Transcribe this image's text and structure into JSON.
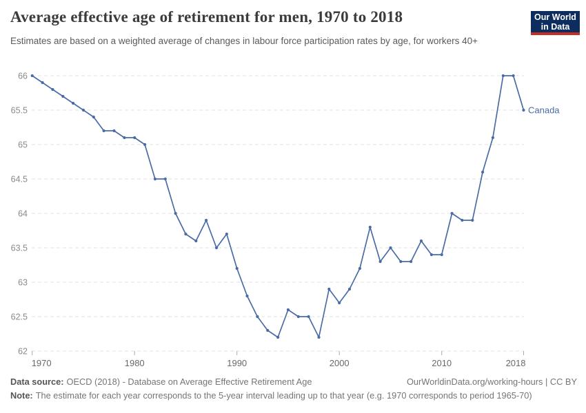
{
  "header": {
    "title": "Average effective age of retirement for men, 1970 to 2018",
    "subtitle": "Estimates are based on a weighted average of changes in labour force participation rates by age, for workers 40+",
    "logo_line1": "Our World",
    "logo_line2": "in Data"
  },
  "footer": {
    "source_label": "Data source:",
    "source_text": "OECD (2018) - Database on Average Effective Retirement Age",
    "citation": "OurWorldinData.org/working-hours | CC BY",
    "note_label": "Note:",
    "note_text": "The estimate for each year corresponds to the 5-year interval leading up to that year (e.g. 1970 corresponds to period 1965-70)"
  },
  "colors": {
    "line": "#4a6ba5",
    "end_label": "#4a6ba5",
    "grid": "#e2e2e2",
    "y_tick_text": "#8a8a8a",
    "x_tick_text": "#696969",
    "tick_mark": "#aaaaaa",
    "logo_bg": "#0d2d5e",
    "logo_stripe": "#c32e27"
  },
  "chart_data": {
    "type": "line",
    "title": "Average effective age of retirement for men, 1970 to 2018",
    "xlabel": "",
    "ylabel": "",
    "xlim": [
      1970,
      2018
    ],
    "ylim": [
      62,
      66
    ],
    "x_ticks": [
      1970,
      1980,
      1990,
      2000,
      2010,
      2018
    ],
    "y_ticks": [
      62,
      62.5,
      63,
      63.5,
      64,
      64.5,
      65,
      65.5,
      66
    ],
    "grid": "horizontal-dashed",
    "legend_position": "end-of-line-label",
    "series": [
      {
        "name": "Canada",
        "x": [
          1970,
          1971,
          1972,
          1973,
          1974,
          1975,
          1976,
          1977,
          1978,
          1979,
          1980,
          1981,
          1982,
          1983,
          1984,
          1985,
          1986,
          1987,
          1988,
          1989,
          1990,
          1991,
          1992,
          1993,
          1994,
          1995,
          1996,
          1997,
          1998,
          1999,
          2000,
          2001,
          2002,
          2003,
          2004,
          2005,
          2006,
          2007,
          2008,
          2009,
          2010,
          2011,
          2012,
          2013,
          2014,
          2015,
          2016,
          2017,
          2018
        ],
        "values": [
          66,
          65.9,
          65.8,
          65.7,
          65.6,
          65.5,
          65.4,
          65.2,
          65.2,
          65.1,
          65.1,
          65,
          64.5,
          64.5,
          64,
          63.7,
          63.6,
          63.9,
          63.5,
          63.7,
          63.2,
          62.8,
          62.5,
          62.3,
          62.2,
          62.6,
          62.5,
          62.5,
          62.2,
          62.9,
          62.7,
          62.9,
          63.2,
          63.8,
          63.3,
          63.5,
          63.3,
          63.3,
          63.6,
          63.4,
          63.4,
          64,
          63.9,
          63.9,
          64.6,
          65.1,
          66,
          66,
          65.5
        ]
      }
    ]
  }
}
